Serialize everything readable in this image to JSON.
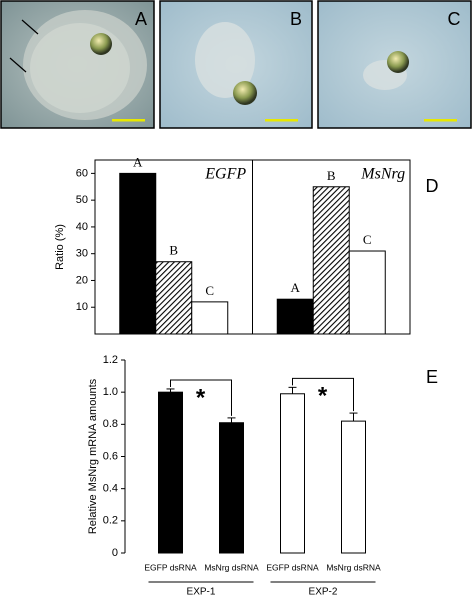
{
  "image_panels": [
    "A",
    "B",
    "C"
  ],
  "chart_data": [
    {
      "type": "grouped-bar",
      "panel_label": "D",
      "ylabel": "Ratio (%)",
      "groups": [
        "EGFP",
        "MsNrg"
      ],
      "series": [
        {
          "name": "A",
          "color": "#000000",
          "values": [
            60,
            13
          ]
        },
        {
          "name": "B",
          "color": "hatch",
          "values": [
            27,
            55
          ]
        },
        {
          "name": "C",
          "color": "#ffffff",
          "values": [
            12,
            31
          ]
        }
      ],
      "ylim": [
        0,
        65
      ],
      "yticks": [
        10,
        20,
        30,
        40,
        50,
        60
      ]
    },
    {
      "type": "bar",
      "panel_label": "E",
      "ylabel": "Relative MsNrg mRNA amounts",
      "categories": [
        "EGFP dsRNA",
        "MsNrg dsRNA",
        "EGFP dsRNA",
        "MsNrg dsRNA"
      ],
      "values": [
        1.0,
        0.81,
        0.99,
        0.82
      ],
      "errors": [
        0.02,
        0.03,
        0.04,
        0.05
      ],
      "colors": [
        "#000000",
        "#000000",
        "#ffffff",
        "#ffffff"
      ],
      "groups": [
        "EXP-1",
        "EXP-2"
      ],
      "annotations": [
        "*",
        "*"
      ],
      "ylim": [
        0,
        1.2
      ],
      "yticks": [
        0,
        0.2,
        0.4,
        0.6,
        0.8,
        {
          "value": 1,
          "label": "1.0"
        },
        1.2
      ]
    }
  ]
}
